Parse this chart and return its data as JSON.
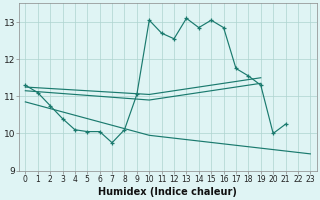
{
  "background_color": "#dff4f4",
  "grid_color": "#aed4d0",
  "line_color": "#1a7a6e",
  "x_label": "Humidex (Indice chaleur)",
  "xlim": [
    -0.5,
    23.5
  ],
  "ylim": [
    9,
    13.5
  ],
  "yticks": [
    9,
    10,
    11,
    12,
    13
  ],
  "xticks": [
    0,
    1,
    2,
    3,
    4,
    5,
    6,
    7,
    8,
    9,
    10,
    11,
    12,
    13,
    14,
    15,
    16,
    17,
    18,
    19,
    20,
    21,
    22,
    23
  ],
  "curve1_x": [
    0,
    1,
    2,
    3,
    4,
    5,
    6,
    7,
    8,
    9,
    10,
    11,
    12,
    13,
    14,
    15,
    16,
    17,
    18,
    19,
    20,
    21
  ],
  "curve1_y": [
    11.3,
    11.1,
    10.75,
    10.4,
    10.1,
    10.05,
    10.05,
    9.75,
    10.1,
    11.05,
    13.05,
    12.7,
    12.55,
    13.1,
    12.85,
    13.05,
    12.85,
    11.75,
    11.55,
    11.3,
    10.0,
    10.25
  ],
  "line1_x": [
    0,
    10,
    19
  ],
  "line1_y": [
    11.25,
    11.05,
    11.5
  ],
  "line2_x": [
    0,
    10,
    19
  ],
  "line2_y": [
    11.15,
    10.9,
    11.35
  ],
  "line3_x": [
    0,
    10,
    23
  ],
  "line3_y": [
    10.85,
    9.95,
    9.45
  ]
}
